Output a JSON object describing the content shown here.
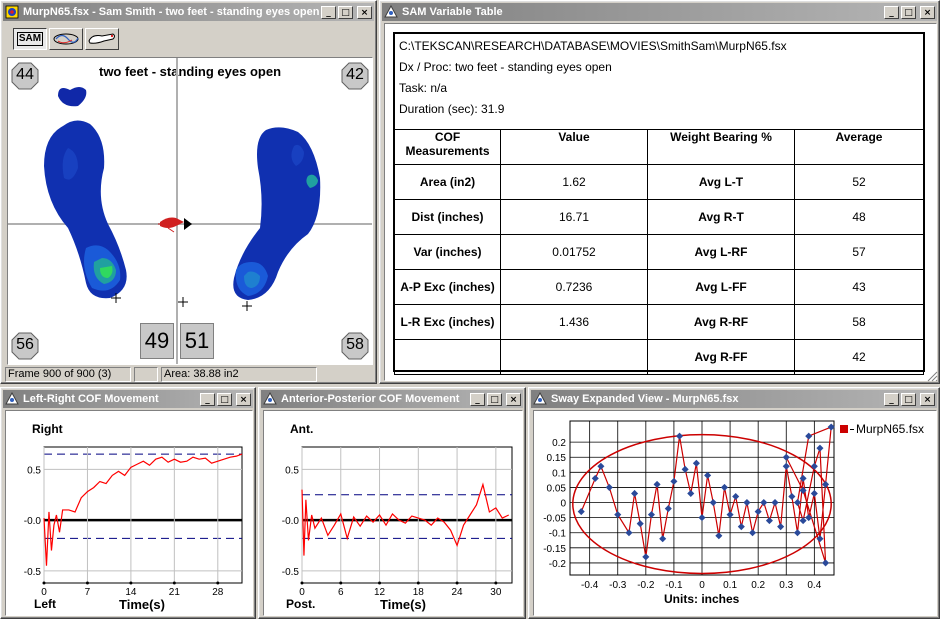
{
  "pressure_window": {
    "title": "MurpN65.fsx - Sam  Smith - two feet - standing eyes open",
    "toolbar": {
      "sam_label": "SAM"
    },
    "canvas_title": "two feet - standing eyes open",
    "corner_numbers": {
      "top_left": "44",
      "top_right": "42",
      "bottom_left": "56",
      "bottom_right": "58",
      "center_left": "49",
      "center_right": "51"
    },
    "status": {
      "frame": "Frame 900 of 900 (3)",
      "area": "Area: 38.88 in2"
    }
  },
  "sam_window": {
    "title": "SAM Variable Table",
    "path": "C:\\TEKSCAN\\RESEARCH\\DATABASE\\MOVIES\\SmithSam\\MurpN65.fsx",
    "dx_proc": "Dx / Proc: two feet - standing eyes open",
    "task": "Task: n/a",
    "duration": "Duration (sec): 31.9",
    "headers": [
      "COF Measurements",
      "Value",
      "Weight Bearing %",
      "Average"
    ],
    "rows": [
      {
        "measure": "Area (in2)",
        "value": "1.62",
        "wb": "Avg L-T",
        "avg": "52"
      },
      {
        "measure": "Dist (inches)",
        "value": "16.71",
        "wb": "Avg R-T",
        "avg": "48"
      },
      {
        "measure": "Var (inches)",
        "value": "0.01752",
        "wb": "Avg L-RF",
        "avg": "57"
      },
      {
        "measure": "A-P Exc (inches)",
        "value": "0.7236",
        "wb": "Avg L-FF",
        "avg": "43"
      },
      {
        "measure": "L-R Exc (inches)",
        "value": "1.436",
        "wb": "Avg R-RF",
        "avg": "58"
      },
      {
        "measure": "",
        "value": "",
        "wb": "Avg R-FF",
        "avg": "42"
      }
    ]
  },
  "lr_window": {
    "title": "Left-Right COF Movement",
    "top_label": "Right",
    "bottom_label": "Left",
    "xlabel": "Time(s)",
    "chart_data": {
      "type": "line",
      "title": "",
      "xlabel": "Time(s)",
      "ylabel": "",
      "x_ticks": [
        0,
        7,
        14,
        21,
        28
      ],
      "y_ticks": [
        0.5,
        -0.0,
        -0.5
      ],
      "y_tick_labels": [
        "0.5",
        "-0.0",
        "-0.5"
      ],
      "xlim": [
        0,
        31.9
      ],
      "ylim": [
        -0.62,
        0.72
      ],
      "reference_lines": [
        0.65,
        -0.18
      ],
      "series": [
        {
          "name": "",
          "color": "#ff0000",
          "x": [
            0,
            0.4,
            0.8,
            1.2,
            1.6,
            2,
            2.5,
            3,
            4,
            5,
            6,
            7,
            8,
            9,
            10,
            11,
            12,
            13,
            14,
            15,
            16,
            17,
            18,
            19,
            20,
            21,
            22,
            23,
            24,
            25,
            26,
            27,
            28,
            29,
            30,
            31,
            31.9
          ],
          "y": [
            0.02,
            -0.45,
            0.08,
            -0.3,
            -0.05,
            0.05,
            -0.12,
            0.1,
            0.1,
            0.08,
            0.22,
            0.28,
            0.32,
            0.38,
            0.36,
            0.44,
            0.48,
            0.44,
            0.52,
            0.55,
            0.58,
            0.54,
            0.6,
            0.62,
            0.57,
            0.6,
            0.57,
            0.58,
            0.62,
            0.6,
            0.61,
            0.56,
            0.58,
            0.6,
            0.62,
            0.63,
            0.65
          ]
        }
      ]
    }
  },
  "ap_window": {
    "title": "Anterior-Posterior COF Movement",
    "top_label": "Ant.",
    "bottom_label": "Post.",
    "xlabel": "Time(s)",
    "chart_data": {
      "type": "line",
      "title": "",
      "xlabel": "Time(s)",
      "ylabel": "",
      "x_ticks": [
        0,
        6,
        12,
        18,
        24,
        30
      ],
      "y_ticks": [
        0.5,
        -0.0,
        -0.5
      ],
      "y_tick_labels": [
        "0.5",
        "-0.0",
        "-0.5"
      ],
      "xlim": [
        0,
        32.5
      ],
      "ylim": [
        -0.62,
        0.72
      ],
      "reference_lines": [
        0.25,
        -0.18
      ],
      "series": [
        {
          "name": "",
          "color": "#ff0000",
          "x": [
            0,
            0.3,
            0.6,
            1,
            1.5,
            2,
            3,
            4,
            5,
            6,
            7,
            8,
            9,
            10,
            11,
            12,
            13,
            14,
            15,
            16,
            17,
            18,
            19,
            20,
            21,
            22,
            23,
            24,
            25,
            26,
            27,
            28,
            29,
            30,
            31,
            32
          ],
          "y": [
            0.3,
            -0.35,
            0.2,
            -0.2,
            0.05,
            -0.08,
            0.02,
            -0.15,
            -0.05,
            0.06,
            -0.18,
            0.03,
            -0.06,
            0.04,
            -0.02,
            0.05,
            -0.05,
            0.06,
            0.0,
            -0.03,
            0.04,
            0.02,
            0.0,
            -0.05,
            0.02,
            -0.02,
            -0.1,
            -0.25,
            -0.05,
            0.05,
            0.15,
            0.35,
            0.08,
            0.12,
            0.02,
            0.05
          ]
        }
      ]
    }
  },
  "sway_window": {
    "title": "Sway Expanded View - MurpN65.fsx",
    "xlabel": "Units: inches",
    "legend": "MurpN65.fsx",
    "chart_data": {
      "type": "scatter",
      "title": "",
      "xlabel": "Units: inches",
      "ylabel": "",
      "x_ticks": [
        -0.4,
        -0.3,
        -0.2,
        -0.1,
        0,
        0.1,
        0.2,
        0.3,
        0.4
      ],
      "y_ticks": [
        0.2,
        0.15,
        0.1,
        0.05,
        0,
        -0.05,
        -0.1,
        -0.15,
        -0.2
      ],
      "xlim": [
        -0.47,
        0.47
      ],
      "ylim": [
        -0.24,
        0.27
      ],
      "ellipse": {
        "cx": 0.0,
        "cy": -0.005,
        "rx": 0.46,
        "ry": 0.23,
        "color": "#cc0000"
      },
      "series": [
        {
          "name": "MurpN65.fsx",
          "marker_color": "#2a4a9a",
          "line_color": "#cc0000",
          "x": [
            -0.43,
            -0.38,
            -0.36,
            -0.33,
            -0.3,
            -0.26,
            -0.24,
            -0.22,
            -0.2,
            -0.18,
            -0.16,
            -0.14,
            -0.12,
            -0.1,
            -0.08,
            -0.06,
            -0.04,
            -0.02,
            0.0,
            0.02,
            0.04,
            0.06,
            0.08,
            0.1,
            0.12,
            0.14,
            0.16,
            0.18,
            0.2,
            0.22,
            0.24,
            0.26,
            0.28,
            0.3,
            0.32,
            0.34,
            0.36,
            0.38,
            0.4,
            0.42,
            0.44,
            0.46,
            0.38,
            0.34,
            0.36,
            0.4,
            0.42,
            0.44,
            0.36,
            0.3
          ],
          "y": [
            -0.03,
            0.08,
            0.12,
            0.05,
            -0.04,
            -0.1,
            0.03,
            -0.07,
            -0.18,
            -0.04,
            0.06,
            -0.12,
            -0.02,
            0.07,
            0.22,
            0.11,
            0.03,
            0.13,
            -0.05,
            0.09,
            0.0,
            -0.11,
            0.05,
            -0.04,
            0.02,
            -0.08,
            0.0,
            -0.1,
            -0.03,
            0.0,
            -0.06,
            0.0,
            -0.08,
            0.12,
            0.02,
            -0.1,
            0.08,
            -0.05,
            0.03,
            -0.12,
            0.06,
            0.25,
            0.22,
            0.0,
            -0.06,
            0.12,
            0.18,
            -0.2,
            0.04,
            0.15
          ]
        }
      ]
    }
  }
}
